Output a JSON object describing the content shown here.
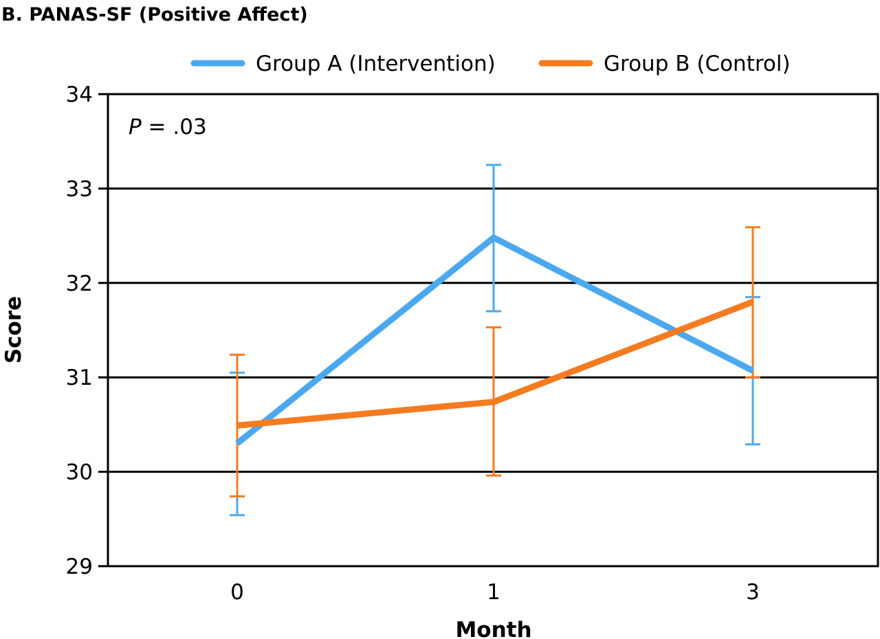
{
  "chart_data": {
    "type": "line",
    "title": "B. PANAS-SF (Positive Affect)",
    "xlabel": "Month",
    "ylabel": "Score",
    "categories": [
      "0",
      "1",
      "3"
    ],
    "ylim": [
      29,
      34
    ],
    "yticks": [
      "29",
      "30",
      "31",
      "32",
      "33",
      "34"
    ],
    "grid": true,
    "legend_position": "top-center",
    "annotation": {
      "italic": "P",
      "rest": " = .03"
    },
    "series": [
      {
        "name": "Group A (Intervention)",
        "color": "#4ba8ef",
        "values": [
          30.3,
          32.48,
          31.07
        ],
        "err_low": [
          29.54,
          31.7,
          30.29
        ],
        "err_high": [
          31.05,
          33.25,
          31.85
        ]
      },
      {
        "name": "Group B (Control)",
        "color": "#f47b20",
        "values": [
          30.49,
          30.74,
          31.8
        ],
        "err_low": [
          29.74,
          29.96,
          31.0
        ],
        "err_high": [
          31.24,
          31.53,
          32.59
        ]
      }
    ]
  }
}
